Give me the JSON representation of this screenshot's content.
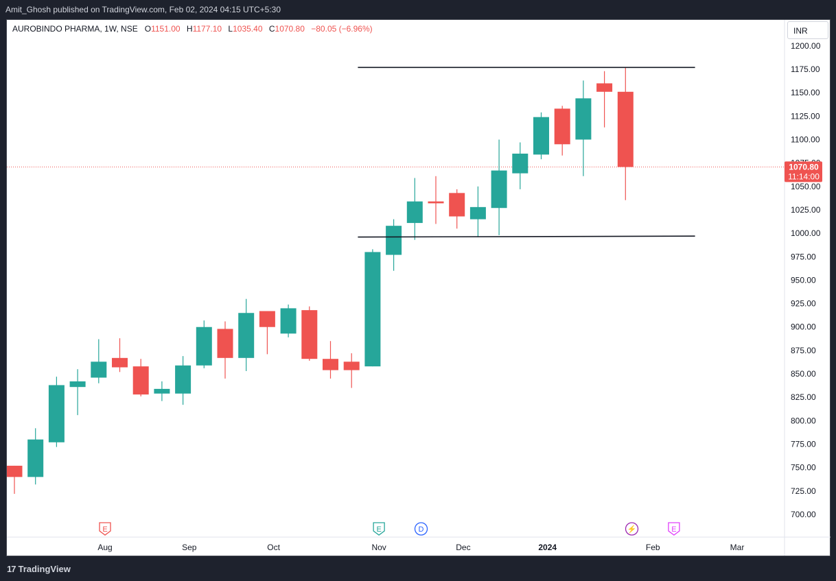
{
  "header": {
    "published_text": "Amit_Ghosh published on TradingView.com, Feb 02, 2024 04:15 UTC+5:30"
  },
  "legend": {
    "symbol": "AUROBINDO PHARMA, 1W, NSE",
    "open_label": "O",
    "open": "1151.00",
    "high_label": "H",
    "high": "1177.10",
    "low_label": "L",
    "low": "1035.40",
    "close_label": "C",
    "close": "1070.80",
    "change": "−80.05 (−6.96%)"
  },
  "currency_button": "INR",
  "price_tag": {
    "price": "1070.80",
    "countdown": "11:14:00"
  },
  "footer": {
    "brand": "TradingView"
  },
  "colors": {
    "up": "#26a69a",
    "down": "#ef5350",
    "line": "#131722",
    "event_red": "#ef5350",
    "event_green": "#26a69a",
    "event_blue": "#2962ff",
    "event_purple": "#9c27b0",
    "event_magenta": "#e040fb"
  },
  "chart_data": {
    "type": "candlestick",
    "interval": "1W",
    "ylim": [
      680,
      1215
    ],
    "y_ticks": [
      700,
      725,
      750,
      775,
      800,
      825,
      850,
      875,
      900,
      925,
      950,
      975,
      1000,
      1025,
      1050,
      1075,
      1100,
      1125,
      1150,
      1175,
      1200
    ],
    "y_tick_labels": [
      "700.00",
      "725.00",
      "750.00",
      "775.00",
      "800.00",
      "825.00",
      "850.00",
      "875.00",
      "900.00",
      "925.00",
      "950.00",
      "975.00",
      "1000.00",
      "1025.00",
      "1050.00",
      "1075.00",
      "1100.00",
      "1125.00",
      "1150.00",
      "1175.00",
      "1200.00"
    ],
    "x_ticks": [
      {
        "label": "Aug",
        "index": 4.3
      },
      {
        "label": "Sep",
        "index": 8.3
      },
      {
        "label": "Oct",
        "index": 12.3
      },
      {
        "label": "Nov",
        "index": 17.3
      },
      {
        "label": "Dec",
        "index": 21.3
      },
      {
        "label": "2024",
        "index": 25.3,
        "bold": true
      },
      {
        "label": "Feb",
        "index": 30.3
      },
      {
        "label": "Mar",
        "index": 34.3
      }
    ],
    "candles": [
      {
        "o": 752,
        "h": 752,
        "l": 722,
        "c": 740
      },
      {
        "o": 740,
        "h": 792,
        "l": 732,
        "c": 780
      },
      {
        "o": 777,
        "h": 847,
        "l": 772,
        "c": 838
      },
      {
        "o": 836,
        "h": 855,
        "l": 806,
        "c": 842
      },
      {
        "o": 846,
        "h": 887,
        "l": 840,
        "c": 863
      },
      {
        "o": 867,
        "h": 888,
        "l": 852,
        "c": 857
      },
      {
        "o": 858,
        "h": 866,
        "l": 826,
        "c": 828
      },
      {
        "o": 829,
        "h": 842,
        "l": 821,
        "c": 834
      },
      {
        "o": 829,
        "h": 869,
        "l": 817,
        "c": 859
      },
      {
        "o": 859,
        "h": 907,
        "l": 856,
        "c": 900
      },
      {
        "o": 898,
        "h": 906,
        "l": 845,
        "c": 867
      },
      {
        "o": 867,
        "h": 930,
        "l": 853,
        "c": 915
      },
      {
        "o": 917,
        "h": 917,
        "l": 871,
        "c": 900
      },
      {
        "o": 893,
        "h": 924,
        "l": 889,
        "c": 920
      },
      {
        "o": 918,
        "h": 922,
        "l": 864,
        "c": 866
      },
      {
        "o": 866,
        "h": 885,
        "l": 845,
        "c": 854
      },
      {
        "o": 863,
        "h": 872,
        "l": 835,
        "c": 854
      },
      {
        "o": 858,
        "h": 983,
        "l": 858,
        "c": 980
      },
      {
        "o": 977,
        "h": 1015,
        "l": 960,
        "c": 1008
      },
      {
        "o": 1011,
        "h": 1059,
        "l": 993,
        "c": 1034
      },
      {
        "o": 1034,
        "h": 1061,
        "l": 1010,
        "c": 1032
      },
      {
        "o": 1043,
        "h": 1047,
        "l": 1005,
        "c": 1018
      },
      {
        "o": 1015,
        "h": 1050,
        "l": 996,
        "c": 1028
      },
      {
        "o": 1027,
        "h": 1100,
        "l": 998,
        "c": 1067
      },
      {
        "o": 1064,
        "h": 1097,
        "l": 1047,
        "c": 1085
      },
      {
        "o": 1084,
        "h": 1129,
        "l": 1079,
        "c": 1124
      },
      {
        "o": 1133,
        "h": 1136,
        "l": 1083,
        "c": 1095
      },
      {
        "o": 1100,
        "h": 1163,
        "l": 1061,
        "c": 1144
      },
      {
        "o": 1160,
        "h": 1173,
        "l": 1113,
        "c": 1151
      },
      {
        "o": 1151,
        "h": 1177.1,
        "l": 1035.4,
        "c": 1070.8
      }
    ],
    "horizontal_lines": [
      {
        "y_start": 1177,
        "y_end": 1177,
        "from_index": 16.3,
        "to_index": 32.3
      },
      {
        "y_start": 996,
        "y_end": 997,
        "from_index": 16.3,
        "to_index": 32.3
      }
    ],
    "last_price": 1070.8,
    "events": [
      {
        "index": 4.3,
        "letter": "E",
        "color": "event_red"
      },
      {
        "index": 17.3,
        "letter": "E",
        "color": "event_green"
      },
      {
        "index": 19.3,
        "letter": "D",
        "color": "event_blue"
      },
      {
        "index": 29.3,
        "letter": "⚡",
        "color": "event_purple"
      },
      {
        "index": 31.3,
        "letter": "E",
        "color": "event_magenta"
      }
    ]
  }
}
